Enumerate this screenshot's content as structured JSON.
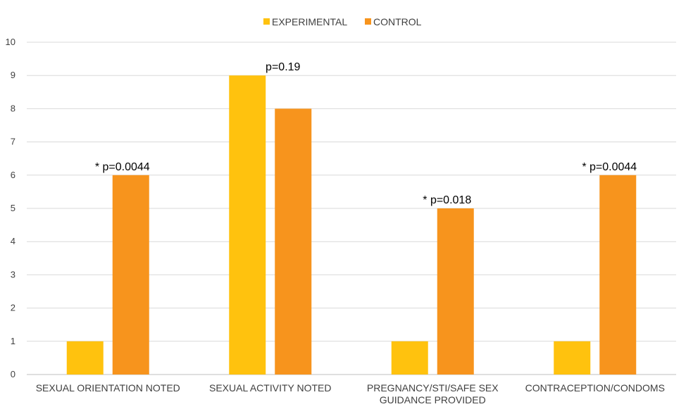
{
  "chart_data": {
    "type": "bar",
    "categories": [
      [
        "SEXUAL ORIENTATION NOTED"
      ],
      [
        "SEXUAL ACTIVITY NOTED"
      ],
      [
        "PREGNANCY/STI/SAFE SEX",
        "GUIDANCE PROVIDED"
      ],
      [
        "CONTRACEPTION/CONDOMS"
      ]
    ],
    "series": [
      {
        "name": "EXPERIMENTAL",
        "color": "#FFC20E",
        "values": [
          1,
          9,
          1,
          1
        ]
      },
      {
        "name": "CONTROL",
        "color": "#F7941D",
        "values": [
          6,
          8,
          5,
          6
        ]
      }
    ],
    "annotations": [
      "* p=0.0044",
      "p=0.19",
      "* p=0.018",
      "* p=0.0044"
    ],
    "ylim": [
      0,
      10
    ],
    "yticks": [
      "0",
      "1",
      "2",
      "3",
      "4",
      "5",
      "6",
      "7",
      "8",
      "9",
      "10"
    ],
    "grid": true,
    "legend_position": "top-center",
    "title": "",
    "xlabel": "",
    "ylabel": ""
  }
}
